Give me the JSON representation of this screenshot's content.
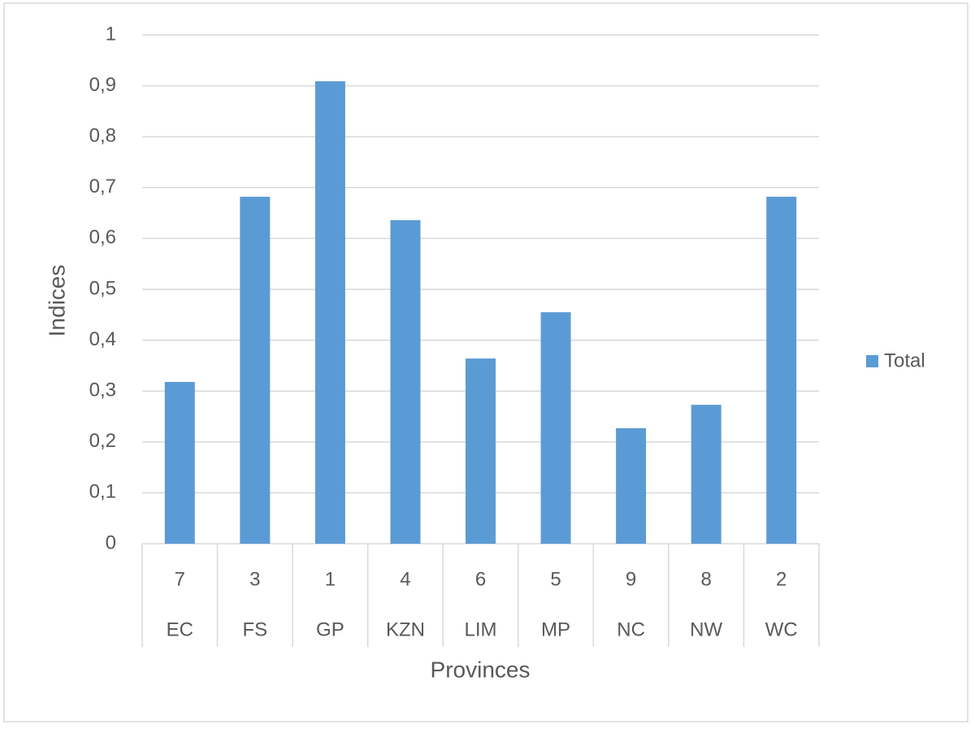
{
  "chart_data": {
    "type": "bar",
    "x_label": "Provinces",
    "y_label": "Indices",
    "categories": [
      "EC",
      "FS",
      "GP",
      "KZN",
      "LIM",
      "MP",
      "NC",
      "NW",
      "WC"
    ],
    "rank_labels": [
      "7",
      "3",
      "1",
      "4",
      "6",
      "5",
      "9",
      "8",
      "2"
    ],
    "series": [
      {
        "name": "Total",
        "color": "#5b9bd5",
        "values": [
          0.318,
          0.682,
          0.909,
          0.636,
          0.364,
          0.455,
          0.227,
          0.273,
          0.682
        ]
      }
    ],
    "ylim": [
      0,
      1
    ],
    "yticks": [
      0,
      {
        "value": 0.1,
        "label": "0,1"
      },
      {
        "value": 0.2,
        "label": "0,2"
      },
      {
        "value": 0.3,
        "label": "0,3"
      },
      {
        "value": 0.4,
        "label": "0,4"
      },
      {
        "value": 0.5,
        "label": "0,5"
      },
      {
        "value": 0.6,
        "label": "0,6"
      },
      {
        "value": 0.7,
        "label": "0,7"
      },
      {
        "value": 0.8,
        "label": "0,8"
      },
      {
        "value": 0.9,
        "label": "0,9"
      },
      1
    ],
    "grid": true,
    "legend": "right"
  }
}
